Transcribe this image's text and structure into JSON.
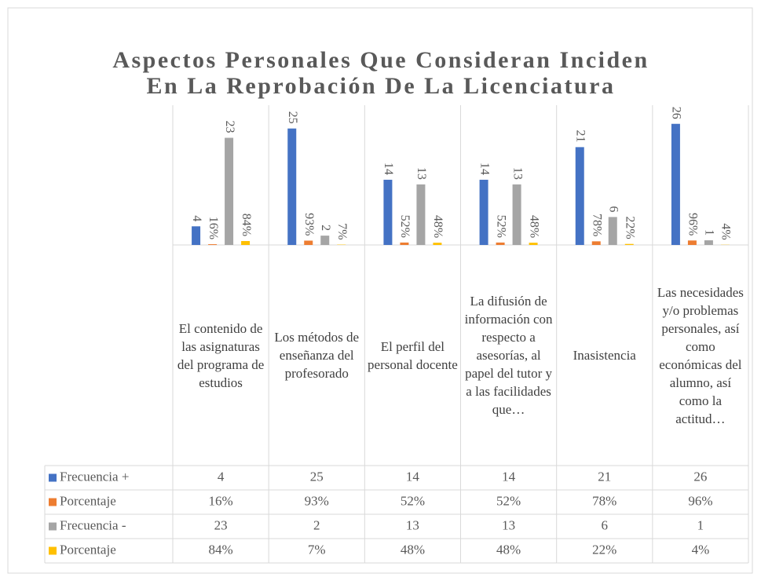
{
  "chart_data": {
    "type": "bar",
    "title": "Aspectos Personales Que Consideran Inciden En La Reprobación De La Licenciatura",
    "categories": [
      "El contenido de las asignaturas del programa de estudios",
      "Los métodos de enseñanza del profesorado",
      "El perfil del personal docente",
      "La difusión de información con respecto a asesorías, al papel del tutor y a las facilidades que…",
      "Inasistencia",
      "Las necesidades y/o problemas personales, así como económicas del alumno, así como la actitud…"
    ],
    "series": [
      {
        "name": "Frecuencia +",
        "color": "#4472c4",
        "values": [
          4,
          25,
          14,
          14,
          21,
          26
        ]
      },
      {
        "name": "Porcentaje",
        "color": "#ed7d31",
        "values": [
          0.16,
          0.93,
          0.52,
          0.52,
          0.78,
          0.96
        ],
        "value_labels": [
          "16%",
          "93%",
          "52%",
          "52%",
          "78%",
          "96%"
        ]
      },
      {
        "name": "Frecuencia -",
        "color": "#a5a5a5",
        "values": [
          23,
          2,
          13,
          13,
          6,
          1
        ]
      },
      {
        "name": "Porcentaje",
        "color": "#ffc000",
        "values": [
          0.84,
          0.07,
          0.48,
          0.48,
          0.22,
          0.04
        ],
        "value_labels": [
          "84%",
          "7%",
          "48%",
          "48%",
          "22%",
          "4%"
        ]
      }
    ],
    "ylim": [
      0,
      30
    ],
    "data_table": true
  }
}
